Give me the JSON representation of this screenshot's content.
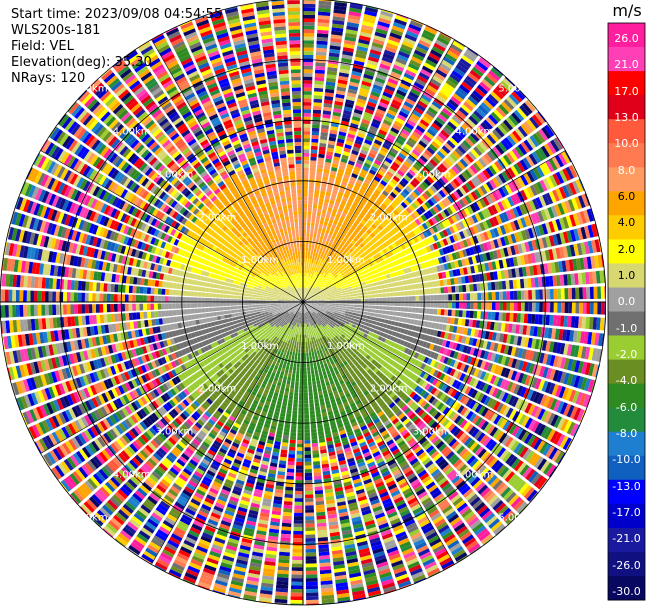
{
  "header": {
    "start_time": "Start time: 2023/09/08 04:54:55",
    "instrument": "WLS200s-181",
    "field": "Field: VEL",
    "elevation": "Elevation(deg): 35.30",
    "nrays": "NRays: 120"
  },
  "colorbar": {
    "unit": "m/s",
    "ticks": [
      "26.0",
      "21.0",
      "17.0",
      "13.0",
      "10.0",
      "8.0",
      "6.0",
      "4.0",
      "2.0",
      "1.0",
      "0.0",
      "-1.0",
      "-2.0",
      "-4.0",
      "-6.0",
      "-8.0",
      "-10.0",
      "-13.0",
      "-17.0",
      "-21.0",
      "-26.0",
      "-30.0"
    ],
    "colors": [
      "#ff1f9e",
      "#ff3fb5",
      "#ff0000",
      "#e0001a",
      "#ff5a3c",
      "#ff7a50",
      "#ff9a60",
      "#ffa500",
      "#ffcc00",
      "#ffff00",
      "#d8d870",
      "#a0a0a0",
      "#707070",
      "#9acd32",
      "#6b8e23",
      "#2e8b22",
      "#228b3c",
      "#1e7fd0",
      "#1060c0",
      "#0000ff",
      "#0000cc",
      "#1a1aa0",
      "#101080",
      "#080860"
    ]
  },
  "chart_data": {
    "type": "ppi",
    "field": "VEL",
    "units": "m/s",
    "nrays": 120,
    "elevation_deg": 35.3,
    "range_rings_km": [
      1.0,
      2.0,
      3.0,
      4.0,
      5.0
    ],
    "ring_labels": [
      "1.00km",
      "2.00km",
      "3.00km",
      "4.00km",
      "5.00km"
    ],
    "max_range_km": 5.0,
    "scale": [
      -30.0,
      26.0
    ],
    "clean_range_km": 2.2,
    "pattern": {
      "toward_lidar_region": {
        "center_azimuth_deg": 180,
        "peak_velocity": -10.0
      },
      "away_region": {
        "center_azimuth_deg": 0,
        "peak_velocity": 10.0
      },
      "zero_isodop_azimuth_deg": [
        90,
        270
      ]
    },
    "noise_beyond_km": 2.4
  }
}
